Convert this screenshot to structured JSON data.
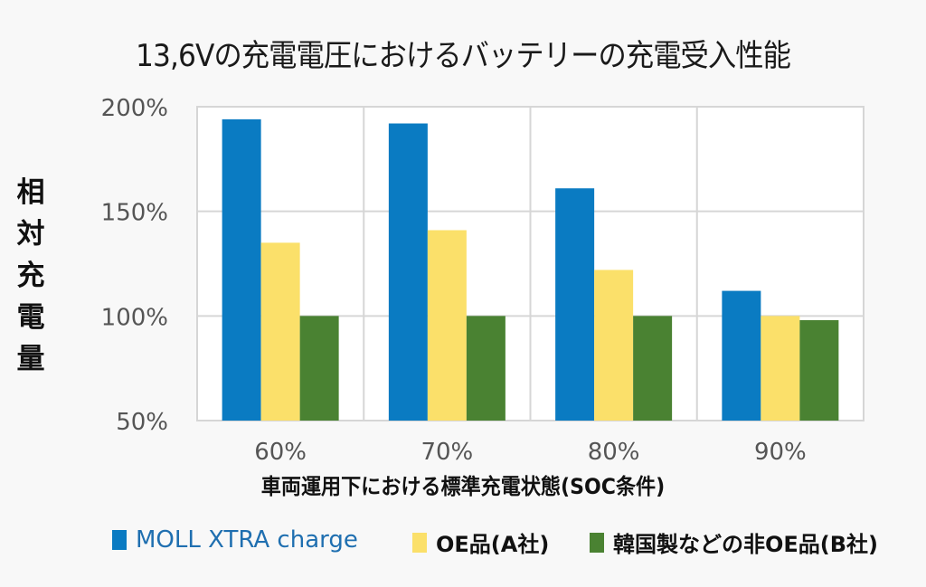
{
  "chart_data": {
    "type": "bar",
    "title": "13,6Vの充電電圧におけるバッテリーの充電受入性能",
    "xlabel": "車両運用下における標準充電状態(SOC条件)",
    "ylabel": "相対充電量",
    "ylabel_chars": [
      "相",
      "対",
      "充",
      "電",
      "量"
    ],
    "categories": [
      "60%",
      "70%",
      "80%",
      "90%"
    ],
    "yticks": [
      {
        "value": 200,
        "label": "200%"
      },
      {
        "value": 150,
        "label": "150%"
      },
      {
        "value": 100,
        "label": "100%"
      },
      {
        "value": 50,
        "label": "50%"
      }
    ],
    "ylim": [
      50,
      200
    ],
    "grid": true,
    "legend_position": "bottom",
    "series": [
      {
        "name": "MOLL XTRA charge",
        "color": "#0a7bc2",
        "values": [
          194,
          192,
          161,
          112
        ]
      },
      {
        "name": "OE品(A社)",
        "color": "#fbe06a",
        "values": [
          135,
          141,
          122,
          100
        ]
      },
      {
        "name": "韓国製などの非OE品(B社)",
        "color": "#4a8232",
        "values": [
          100,
          100,
          100,
          98
        ]
      }
    ]
  }
}
